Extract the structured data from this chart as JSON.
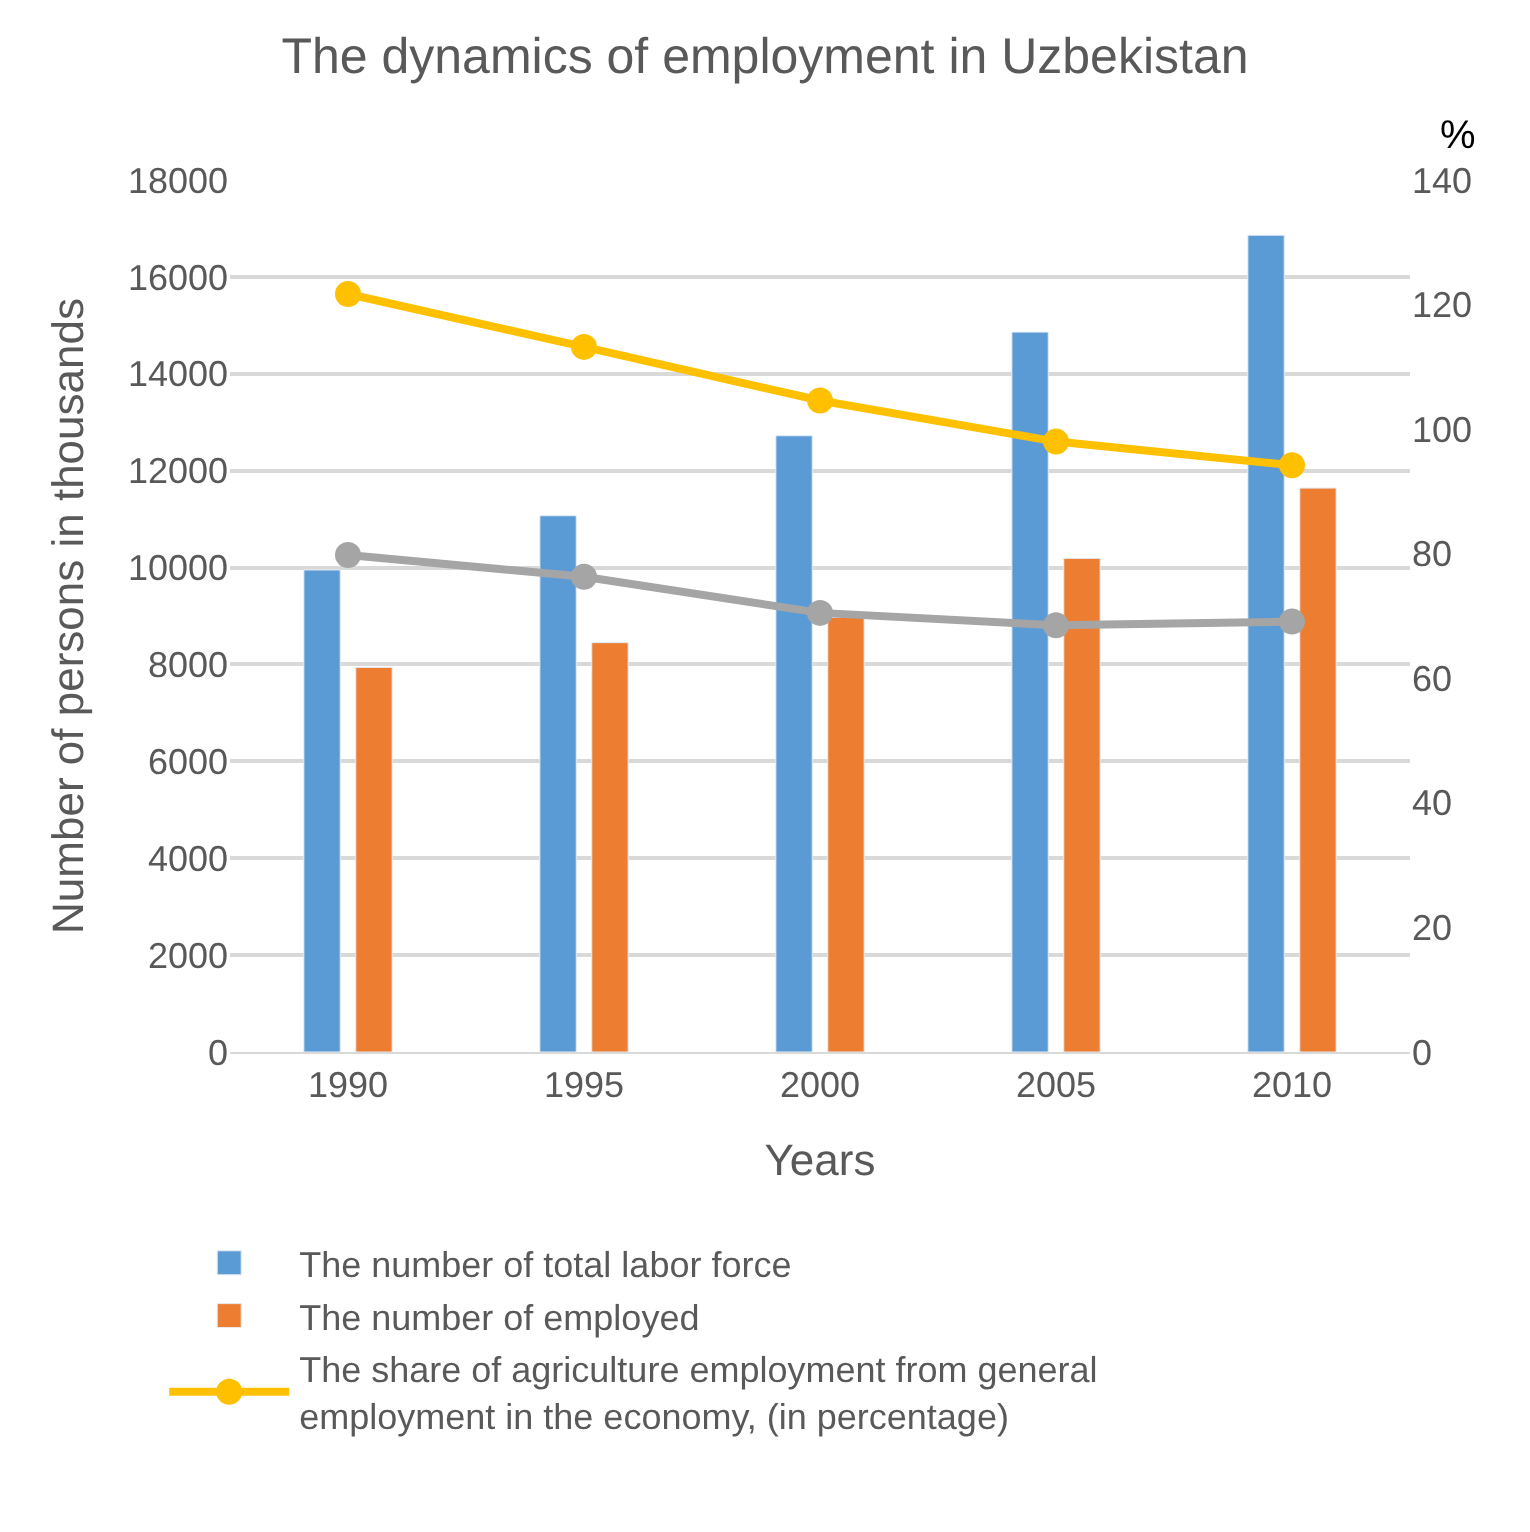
{
  "chart_data": {
    "type": "bar",
    "title": "The dynamics of employment in Uzbekistan",
    "xlabel": "Years",
    "ylabel": "Number of persons in thousands",
    "y2label": "%",
    "categories": [
      "1990",
      "1995",
      "2000",
      "2005",
      "2010"
    ],
    "series": [
      {
        "name": "The number of total labor force",
        "color": "#5b9bd5",
        "values": [
          9950,
          11070,
          12720,
          14860,
          16860
        ]
      },
      {
        "name": "The number of employed",
        "color": "#ed7d31",
        "values": [
          7940,
          8450,
          8970,
          10190,
          11640
        ]
      },
      {
        "name": "The share of agriculture employment from general employment in the economy, (in percentage)",
        "type": "line",
        "axis": "y2",
        "color": "#ffc000",
        "values": [
          121.7,
          113.2,
          104.6,
          98.0,
          94.2
        ]
      },
      {
        "type": "line",
        "axis": "y2",
        "color": "#a5a5a5",
        "values": [
          79.8,
          76.3,
          70.5,
          68.5,
          69.1
        ]
      }
    ],
    "ylim": [
      0,
      18000
    ],
    "yticks": [
      0,
      2000,
      4000,
      6000,
      8000,
      10000,
      12000,
      14000,
      16000,
      18000
    ],
    "y2lim": [
      0,
      140
    ],
    "y2ticks": [
      0,
      20,
      40,
      60,
      80,
      100,
      120,
      140
    ],
    "grid": "y",
    "legend": "bottom",
    "marker": "circle",
    "line_style": "solid"
  }
}
